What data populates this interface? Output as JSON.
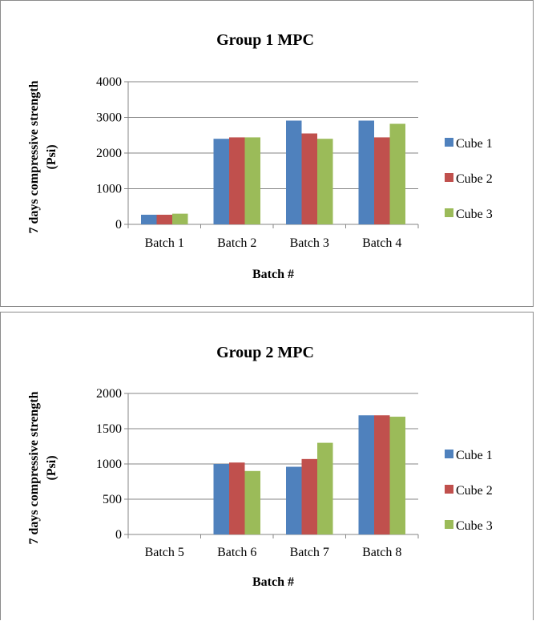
{
  "chart_data": [
    {
      "type": "bar",
      "title": "Group 1 MPC",
      "xlabel": "Batch #",
      "ylabel_lines": [
        "7 days compressive strength",
        "(Psi)"
      ],
      "ylim": [
        0,
        4000
      ],
      "yticks": [
        0,
        1000,
        2000,
        3000,
        4000
      ],
      "grid": true,
      "legend_position": "right",
      "categories": [
        "Batch 1",
        "Batch 2",
        "Batch 3",
        "Batch 4"
      ],
      "series": [
        {
          "name": "Cube 1",
          "color": "#4F81BD",
          "values": [
            270,
            2400,
            2910,
            2910
          ]
        },
        {
          "name": "Cube 2",
          "color": "#C0504D",
          "values": [
            270,
            2440,
            2550,
            2440
          ]
        },
        {
          "name": "Cube 3",
          "color": "#9BBB59",
          "values": [
            300,
            2440,
            2400,
            2820
          ]
        }
      ]
    },
    {
      "type": "bar",
      "title": "Group 2 MPC",
      "xlabel": "Batch #",
      "ylabel_lines": [
        "7 days compressive strength",
        "(Psi)"
      ],
      "ylim": [
        0,
        2000
      ],
      "yticks": [
        0,
        500,
        1000,
        1500,
        2000
      ],
      "grid": true,
      "legend_position": "right",
      "categories": [
        "Batch 5",
        "Batch 6",
        "Batch 7",
        "Batch 8"
      ],
      "series": [
        {
          "name": "Cube 1",
          "color": "#4F81BD",
          "values": [
            0,
            1000,
            960,
            1690
          ]
        },
        {
          "name": "Cube 2",
          "color": "#C0504D",
          "values": [
            0,
            1020,
            1070,
            1690
          ]
        },
        {
          "name": "Cube 3",
          "color": "#9BBB59",
          "values": [
            0,
            900,
            1300,
            1670
          ]
        }
      ]
    }
  ]
}
